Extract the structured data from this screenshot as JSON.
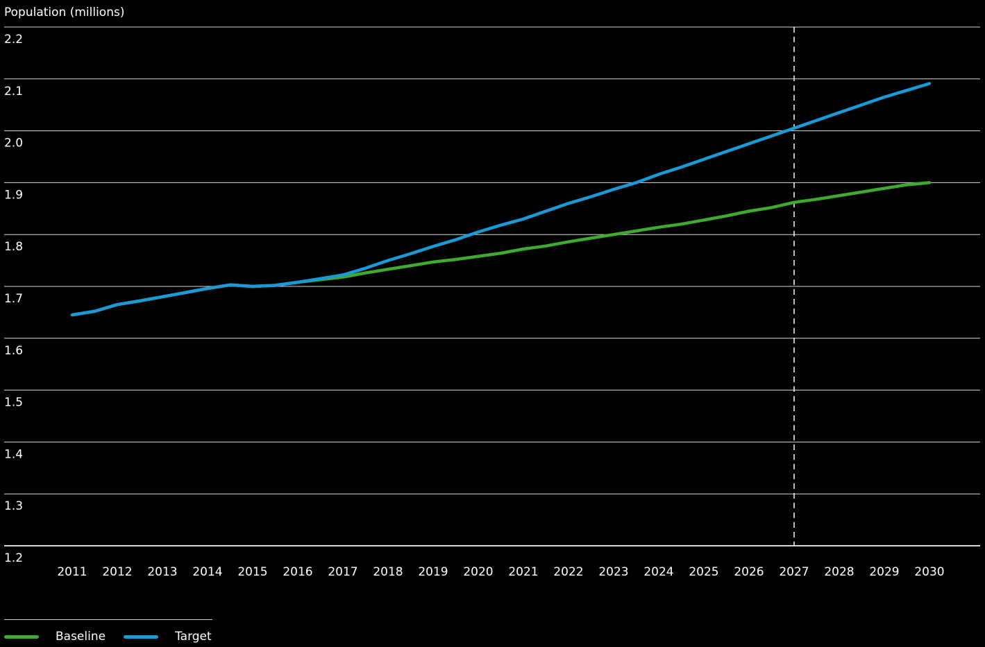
{
  "chart_data": {
    "type": "line",
    "ylabel": "Population (millions)",
    "xlabel": "",
    "ylim": [
      1.2,
      2.2
    ],
    "y_ticks": [
      "1.2",
      "1.3",
      "1.4",
      "1.5",
      "1.6",
      "1.7",
      "1.8",
      "1.9",
      "2.0",
      "2.1",
      "2.2"
    ],
    "x_ticks": [
      "2011",
      "2012",
      "2013",
      "2014",
      "2015",
      "2016",
      "2017",
      "2018",
      "2019",
      "2020",
      "2021",
      "2022",
      "2023",
      "2024",
      "2025",
      "2026",
      "2027",
      "2028",
      "2029",
      "2030"
    ],
    "x_range": [
      2011,
      2030
    ],
    "marker_year": 2027,
    "grid": true,
    "legend_position": "bottom-left",
    "series": [
      {
        "name": "Baseline",
        "color": "#3eaa2f",
        "x": [
          2011,
          2011.5,
          2012,
          2012.5,
          2013,
          2013.5,
          2014,
          2014.5,
          2015,
          2015.5,
          2016,
          2016.5,
          2017,
          2017.5,
          2018,
          2018.5,
          2019,
          2019.5,
          2020,
          2020.5,
          2021,
          2021.5,
          2022,
          2022.5,
          2023,
          2023.5,
          2024,
          2024.5,
          2025,
          2025.5,
          2026,
          2026.5,
          2027,
          2027.5,
          2028,
          2028.5,
          2029,
          2029.5,
          2030
        ],
        "values": [
          1.645,
          1.652,
          1.665,
          1.672,
          1.68,
          1.688,
          1.696,
          1.703,
          1.7,
          1.702,
          1.708,
          1.713,
          1.718,
          1.726,
          1.733,
          1.74,
          1.747,
          1.752,
          1.758,
          1.764,
          1.772,
          1.778,
          1.786,
          1.793,
          1.8,
          1.807,
          1.814,
          1.82,
          1.828,
          1.836,
          1.845,
          1.852,
          1.862,
          1.868,
          1.875,
          1.882,
          1.889,
          1.896,
          1.9
        ]
      },
      {
        "name": "Target",
        "color": "#1a9ad6",
        "x": [
          2011,
          2011.5,
          2012,
          2012.5,
          2013,
          2013.5,
          2014,
          2014.5,
          2015,
          2015.5,
          2016,
          2016.5,
          2017,
          2017.5,
          2018,
          2018.5,
          2019,
          2019.5,
          2020,
          2020.5,
          2021,
          2021.5,
          2022,
          2022.5,
          2023,
          2023.5,
          2024,
          2024.5,
          2025,
          2025.5,
          2026,
          2026.5,
          2027,
          2027.5,
          2028,
          2028.5,
          2029,
          2029.5,
          2030
        ],
        "values": [
          1.645,
          1.652,
          1.665,
          1.672,
          1.68,
          1.688,
          1.696,
          1.703,
          1.7,
          1.702,
          1.708,
          1.715,
          1.722,
          1.735,
          1.75,
          1.763,
          1.777,
          1.79,
          1.805,
          1.818,
          1.83,
          1.845,
          1.86,
          1.873,
          1.887,
          1.9,
          1.916,
          1.93,
          1.945,
          1.96,
          1.975,
          1.99,
          2.005,
          2.02,
          2.035,
          2.05,
          2.065,
          2.078,
          2.091
        ]
      }
    ]
  }
}
